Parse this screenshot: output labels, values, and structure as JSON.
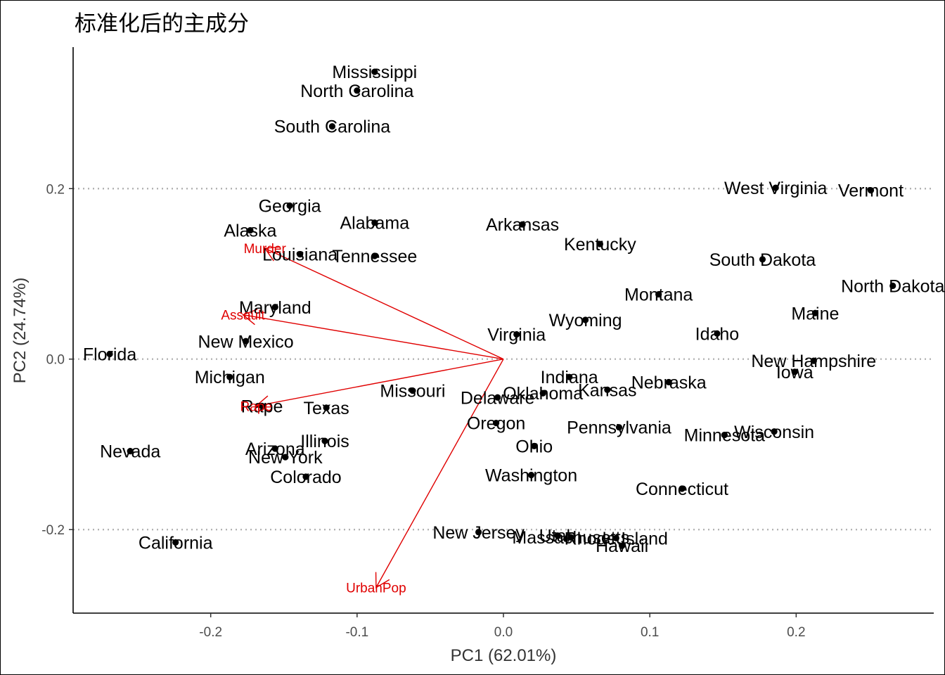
{
  "chart_data": {
    "type": "scatter",
    "title": "标准化后的主成分",
    "xlabel": "PC1 (62.01%)",
    "ylabel": "PC2 (24.74%)",
    "xlim": [
      -0.294,
      0.294
    ],
    "ylim": [
      -0.298,
      0.366
    ],
    "xticks": [
      -0.2,
      -0.1,
      0.0,
      0.1,
      0.2
    ],
    "xtick_labels": [
      "-0.2",
      "-0.1",
      "0.0",
      "0.1",
      "0.2"
    ],
    "yticks": [
      -0.2,
      0.0,
      0.2
    ],
    "ytick_labels": [
      "-0.2",
      "0.0",
      "0.2"
    ],
    "grid": "horizontal dotted at y-ticks",
    "point_color": "#000000",
    "arrow_color": "#e00000",
    "points": [
      {
        "label": "Mississippi",
        "x": -0.088,
        "y": 0.337
      },
      {
        "label": "North Carolina",
        "x": -0.1,
        "y": 0.315
      },
      {
        "label": "South Carolina",
        "x": -0.117,
        "y": 0.273
      },
      {
        "label": "West Virginia",
        "x": 0.186,
        "y": 0.201
      },
      {
        "label": "Vermont",
        "x": 0.251,
        "y": 0.198
      },
      {
        "label": "Georgia",
        "x": -0.146,
        "y": 0.18
      },
      {
        "label": "Alabama",
        "x": -0.088,
        "y": 0.16
      },
      {
        "label": "Arkansas",
        "x": 0.013,
        "y": 0.158
      },
      {
        "label": "Alaska",
        "x": -0.173,
        "y": 0.151
      },
      {
        "label": "Kentucky",
        "x": 0.066,
        "y": 0.135
      },
      {
        "label": "Louisiana",
        "x": -0.139,
        "y": 0.123
      },
      {
        "label": "Tennessee",
        "x": -0.088,
        "y": 0.121
      },
      {
        "label": "South Dakota",
        "x": 0.177,
        "y": 0.117
      },
      {
        "label": "North Dakota",
        "x": 0.266,
        "y": 0.086
      },
      {
        "label": "Montana",
        "x": 0.106,
        "y": 0.076
      },
      {
        "label": "Maryland",
        "x": -0.156,
        "y": 0.061
      },
      {
        "label": "Maine",
        "x": 0.213,
        "y": 0.054
      },
      {
        "label": "Wyoming",
        "x": 0.056,
        "y": 0.046
      },
      {
        "label": "Idaho",
        "x": 0.146,
        "y": 0.03
      },
      {
        "label": "Virginia",
        "x": 0.009,
        "y": 0.029
      },
      {
        "label": "New Mexico",
        "x": -0.176,
        "y": 0.021
      },
      {
        "label": "Florida",
        "x": -0.269,
        "y": 0.006
      },
      {
        "label": "New Hampshire",
        "x": 0.212,
        "y": -0.002
      },
      {
        "label": "Iowa",
        "x": 0.199,
        "y": -0.015
      },
      {
        "label": "Michigan",
        "x": -0.187,
        "y": -0.021
      },
      {
        "label": "Indiana",
        "x": 0.045,
        "y": -0.021
      },
      {
        "label": "Nebraska",
        "x": 0.113,
        "y": -0.027
      },
      {
        "label": "Missouri",
        "x": -0.062,
        "y": -0.037
      },
      {
        "label": "Kansas",
        "x": 0.071,
        "y": -0.036
      },
      {
        "label": "Oklahoma",
        "x": 0.027,
        "y": -0.04
      },
      {
        "label": "Delaware",
        "x": -0.004,
        "y": -0.045
      },
      {
        "label": "Rape",
        "x": -0.165,
        "y": -0.055
      },
      {
        "label": "Texas",
        "x": -0.121,
        "y": -0.057
      },
      {
        "label": "Oregon",
        "x": -0.005,
        "y": -0.075
      },
      {
        "label": "Pennsylvania",
        "x": 0.079,
        "y": -0.08
      },
      {
        "label": "Wisconsin",
        "x": 0.185,
        "y": -0.085
      },
      {
        "label": "Minnesota",
        "x": 0.151,
        "y": -0.089
      },
      {
        "label": "Illinois",
        "x": -0.122,
        "y": -0.096
      },
      {
        "label": "Ohio",
        "x": 0.021,
        "y": -0.102
      },
      {
        "label": "Arizona",
        "x": -0.156,
        "y": -0.105
      },
      {
        "label": "Nevada",
        "x": -0.255,
        "y": -0.108
      },
      {
        "label": "New York",
        "x": -0.149,
        "y": -0.115
      },
      {
        "label": "Washington",
        "x": 0.019,
        "y": -0.136
      },
      {
        "label": "Colorado",
        "x": -0.135,
        "y": -0.138
      },
      {
        "label": "Connecticut",
        "x": 0.122,
        "y": -0.152
      },
      {
        "label": "New Jersey",
        "x": -0.017,
        "y": -0.203
      },
      {
        "label": "Utah",
        "x": 0.037,
        "y": -0.207
      },
      {
        "label": "Massachusetts",
        "x": 0.046,
        "y": -0.209
      },
      {
        "label": "Rhode Island",
        "x": 0.077,
        "y": -0.21
      },
      {
        "label": "California",
        "x": -0.224,
        "y": -0.215
      },
      {
        "label": "Hawaii",
        "x": 0.081,
        "y": -0.219
      }
    ],
    "loadings": [
      {
        "label": "Murder",
        "x": -0.163,
        "y": 0.13
      },
      {
        "label": "Assault",
        "x": -0.178,
        "y": 0.052
      },
      {
        "label": "Rape",
        "x": -0.169,
        "y": -0.055
      },
      {
        "label": "UrbanPop",
        "x": -0.087,
        "y": -0.268
      }
    ]
  }
}
